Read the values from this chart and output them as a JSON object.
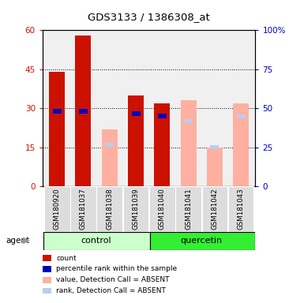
{
  "title": "GDS3133 / 1386308_at",
  "samples": [
    "GSM180920",
    "GSM181037",
    "GSM181038",
    "GSM181039",
    "GSM181040",
    "GSM181041",
    "GSM181042",
    "GSM181043"
  ],
  "absent": [
    false,
    false,
    true,
    false,
    false,
    true,
    true,
    true
  ],
  "red_values": [
    44.0,
    58.0,
    0,
    35.0,
    32.0,
    0,
    0,
    0
  ],
  "blue_values": [
    29.0,
    29.0,
    0,
    28.0,
    27.0,
    0,
    0,
    0
  ],
  "pink_values": [
    0,
    0,
    22.0,
    0,
    0,
    33.0,
    15.0,
    32.0
  ],
  "lblue_values": [
    0,
    0,
    16.0,
    0,
    0,
    25.0,
    15.0,
    27.0
  ],
  "ylim_left": [
    0,
    60
  ],
  "yticks_left": [
    0,
    15,
    30,
    45,
    60
  ],
  "ytick_labels_left": [
    "0",
    "15",
    "30",
    "45",
    "60"
  ],
  "ytick_labels_right": [
    "0",
    "25",
    "50",
    "75",
    "100%"
  ],
  "color_red": "#CC1100",
  "color_blue": "#0000BB",
  "color_pink": "#FFB0A0",
  "color_lblue": "#BBCCEE",
  "color_control_light": "#CCFFCC",
  "color_quercetin_dark": "#33EE33",
  "color_chart_bg": "#F0F0F0",
  "color_sample_box": "#DDDDDD",
  "bar_width": 0.6,
  "grid_lines": [
    15,
    30,
    45
  ],
  "ctrl_label": "control",
  "quer_label": "quercetin",
  "agent_label": "agent",
  "legend_items": [
    [
      "#CC1100",
      "count"
    ],
    [
      "#0000BB",
      "percentile rank within the sample"
    ],
    [
      "#FFB0A0",
      "value, Detection Call = ABSENT"
    ],
    [
      "#BBCCEE",
      "rank, Detection Call = ABSENT"
    ]
  ]
}
